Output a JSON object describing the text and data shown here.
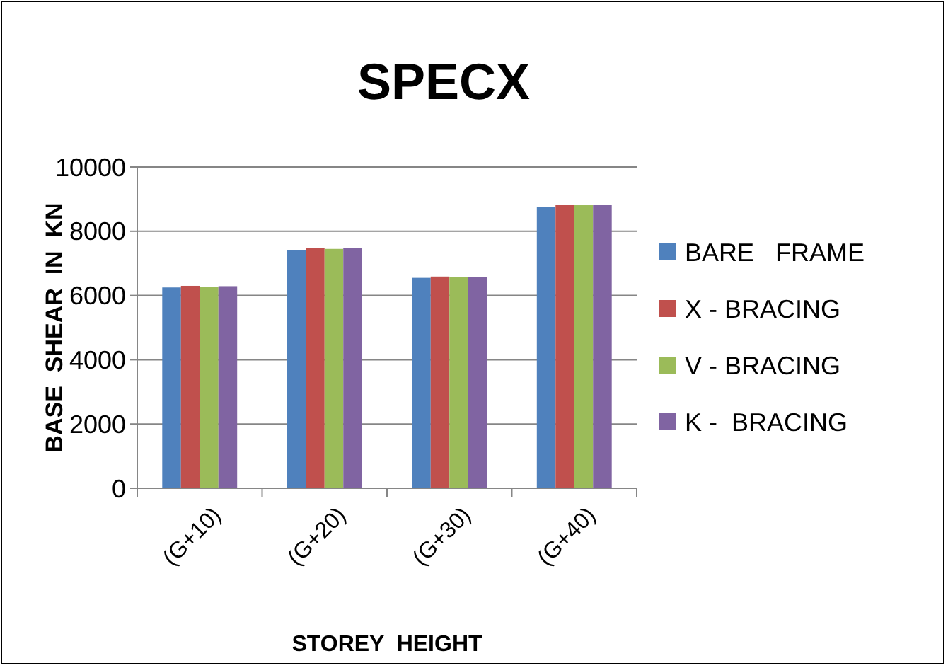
{
  "chart_data": {
    "type": "bar",
    "title": "SPECX",
    "xlabel": "STOREY  HEIGHT",
    "ylabel": "BASE  SHEAR  IN  KN",
    "categories": [
      "(G+10)",
      "(G+20)",
      "(G+30)",
      "(G+40)"
    ],
    "series": [
      {
        "name": "BARE   FRAME",
        "color": "#4f81bd",
        "values": [
          6250,
          7420,
          6550,
          8760
        ]
      },
      {
        "name": "X - BRACING",
        "color": "#c0504d",
        "values": [
          6300,
          7480,
          6590,
          8820
        ]
      },
      {
        "name": "V - BRACING",
        "color": "#9bbb59",
        "values": [
          6270,
          7450,
          6570,
          8810
        ]
      },
      {
        "name": "K -  BRACING",
        "color": "#8064a2",
        "values": [
          6290,
          7470,
          6580,
          8820
        ]
      }
    ],
    "ylim": [
      0,
      10000
    ],
    "yticks": [
      0,
      2000,
      4000,
      6000,
      8000,
      10000
    ],
    "grid": "y",
    "legend": "right"
  }
}
